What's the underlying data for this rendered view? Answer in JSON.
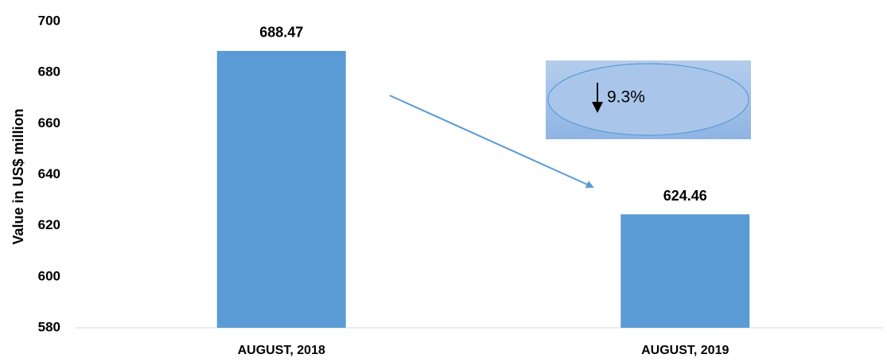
{
  "chart_data": {
    "type": "bar",
    "y_label": "Value in US$ million",
    "categories": [
      "AUGUST, 2018",
      "AUGUST, 2019"
    ],
    "values": [
      688.47,
      624.46
    ],
    "color": "#5b9bd5",
    "ylim": [
      580,
      700
    ],
    "yticks": [
      580,
      600,
      620,
      640,
      660,
      680,
      700
    ],
    "grid": false,
    "annotation": "9.3%"
  }
}
